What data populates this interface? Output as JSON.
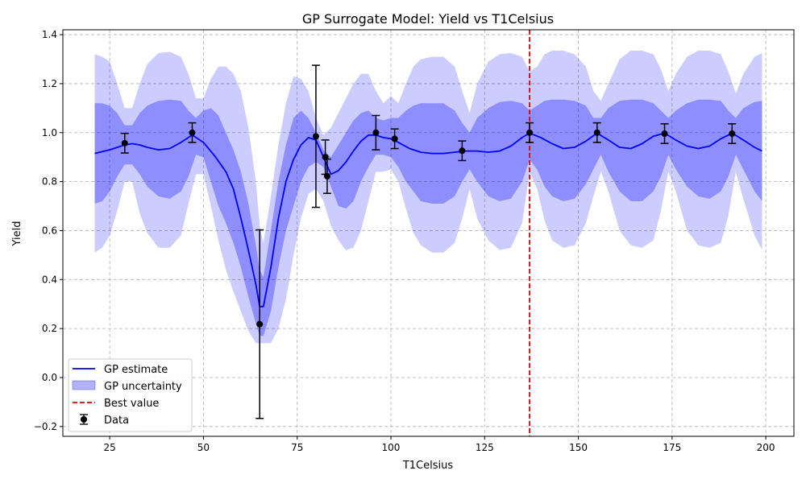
{
  "chart_data": {
    "type": "line",
    "title": "GP Surrogate Model: Yield vs T1Celsius",
    "xlabel": "T1Celsius",
    "ylabel": "Yield",
    "xlim": [
      12.5,
      207.5
    ],
    "ylim": [
      -0.24,
      1.42
    ],
    "xticks": [
      25,
      50,
      75,
      100,
      125,
      150,
      175,
      200
    ],
    "yticks": [
      -0.2,
      0.0,
      0.2,
      0.4,
      0.6,
      0.8,
      1.0,
      1.2,
      1.4
    ],
    "xtick_labels": [
      "25",
      "50",
      "75",
      "100",
      "125",
      "150",
      "175",
      "200"
    ],
    "ytick_labels": [
      "−0.2",
      "0.0",
      "0.2",
      "0.4",
      "0.6",
      "0.8",
      "1.0",
      "1.2",
      "1.4"
    ],
    "grid": true,
    "legend_position": "lower-left",
    "colors": {
      "estimate": "#0000ff",
      "band": "#0000ff",
      "best": "#dd0000",
      "data": "#000000"
    },
    "series": [
      {
        "name": "GP estimate",
        "kind": "line",
        "x": [
          21,
          25,
          29,
          31,
          33,
          35,
          38,
          41,
          44,
          47,
          50,
          53,
          56,
          58,
          60,
          62,
          64,
          65,
          66,
          68,
          70,
          72,
          74,
          76,
          78,
          80,
          82,
          84,
          86,
          88,
          90,
          92,
          94,
          96,
          98,
          100,
          102,
          105,
          108,
          111,
          114,
          117,
          120,
          123,
          126,
          129,
          132,
          135,
          137,
          140,
          143,
          146,
          149,
          152,
          155,
          158,
          161,
          164,
          167,
          170,
          173,
          176,
          179,
          182,
          185,
          188,
          191,
          194,
          197,
          199
        ],
        "y": [
          0.915,
          0.93,
          0.95,
          0.955,
          0.95,
          0.94,
          0.93,
          0.935,
          0.96,
          0.99,
          0.96,
          0.905,
          0.84,
          0.77,
          0.65,
          0.52,
          0.38,
          0.29,
          0.29,
          0.45,
          0.65,
          0.8,
          0.89,
          0.95,
          0.98,
          0.97,
          0.9,
          0.83,
          0.845,
          0.88,
          0.925,
          0.965,
          0.99,
          0.99,
          0.98,
          0.975,
          0.96,
          0.935,
          0.92,
          0.915,
          0.915,
          0.92,
          0.925,
          0.925,
          0.92,
          0.925,
          0.945,
          0.98,
          0.998,
          0.98,
          0.955,
          0.935,
          0.94,
          0.965,
          0.998,
          0.97,
          0.94,
          0.935,
          0.955,
          0.985,
          0.998,
          0.97,
          0.945,
          0.935,
          0.945,
          0.975,
          0.998,
          0.97,
          0.94,
          0.925
        ]
      },
      {
        "name": "GP uncertainty",
        "kind": "band",
        "x": [
          21,
          23,
          25,
          27,
          29,
          31,
          33,
          35,
          38,
          41,
          44,
          46,
          48,
          50,
          52,
          54,
          56,
          58,
          60,
          62,
          64,
          65,
          66,
          68,
          70,
          72,
          74,
          76,
          78,
          80,
          82,
          84,
          86,
          88,
          90,
          92,
          94,
          96,
          98,
          100,
          102,
          104,
          106,
          108,
          111,
          114,
          117,
          119,
          121,
          123,
          126,
          129,
          132,
          135,
          137,
          139,
          141,
          143,
          146,
          149,
          152,
          154,
          156,
          158,
          161,
          164,
          167,
          170,
          172,
          174,
          176,
          179,
          182,
          185,
          188,
          190,
          192,
          194,
          197,
          199
        ],
        "inner_lower": [
          0.71,
          0.72,
          0.76,
          0.82,
          0.87,
          0.87,
          0.83,
          0.78,
          0.74,
          0.73,
          0.76,
          0.82,
          0.91,
          0.9,
          0.8,
          0.7,
          0.63,
          0.55,
          0.45,
          0.33,
          0.22,
          0.17,
          0.17,
          0.27,
          0.45,
          0.6,
          0.7,
          0.8,
          0.86,
          0.88,
          0.86,
          0.78,
          0.7,
          0.69,
          0.72,
          0.8,
          0.86,
          0.91,
          0.91,
          0.9,
          0.86,
          0.8,
          0.76,
          0.72,
          0.71,
          0.71,
          0.74,
          0.8,
          0.85,
          0.8,
          0.74,
          0.72,
          0.73,
          0.8,
          0.89,
          0.85,
          0.78,
          0.74,
          0.72,
          0.73,
          0.79,
          0.85,
          0.91,
          0.84,
          0.76,
          0.72,
          0.72,
          0.76,
          0.82,
          0.91,
          0.85,
          0.78,
          0.74,
          0.73,
          0.76,
          0.82,
          0.91,
          0.85,
          0.76,
          0.72
        ],
        "inner_upper": [
          1.12,
          1.12,
          1.11,
          1.08,
          1.03,
          1.03,
          1.08,
          1.11,
          1.13,
          1.135,
          1.13,
          1.09,
          1.06,
          1.09,
          1.1,
          1.07,
          1.0,
          0.93,
          0.84,
          0.71,
          0.54,
          0.44,
          0.41,
          0.6,
          0.8,
          0.95,
          1.06,
          1.09,
          1.06,
          1.0,
          0.93,
          0.9,
          0.95,
          1.0,
          1.05,
          1.08,
          1.09,
          1.06,
          1.05,
          1.06,
          1.06,
          1.09,
          1.11,
          1.12,
          1.12,
          1.12,
          1.09,
          1.04,
          1.0,
          1.06,
          1.1,
          1.125,
          1.13,
          1.12,
          1.09,
          1.11,
          1.13,
          1.135,
          1.135,
          1.13,
          1.11,
          1.06,
          1.06,
          1.1,
          1.13,
          1.135,
          1.135,
          1.12,
          1.09,
          1.06,
          1.09,
          1.12,
          1.135,
          1.135,
          1.13,
          1.09,
          1.06,
          1.1,
          1.125,
          1.13
        ],
        "outer_lower": [
          0.51,
          0.53,
          0.58,
          0.68,
          0.8,
          0.8,
          0.67,
          0.59,
          0.53,
          0.53,
          0.58,
          0.71,
          0.83,
          0.83,
          0.7,
          0.56,
          0.44,
          0.35,
          0.27,
          0.19,
          0.14,
          0.14,
          0.14,
          0.14,
          0.2,
          0.32,
          0.5,
          0.65,
          0.75,
          0.77,
          0.72,
          0.62,
          0.56,
          0.52,
          0.53,
          0.6,
          0.72,
          0.84,
          0.84,
          0.85,
          0.8,
          0.69,
          0.59,
          0.54,
          0.51,
          0.51,
          0.55,
          0.65,
          0.77,
          0.65,
          0.56,
          0.52,
          0.53,
          0.63,
          0.84,
          0.77,
          0.64,
          0.56,
          0.53,
          0.54,
          0.63,
          0.74,
          0.84,
          0.76,
          0.6,
          0.54,
          0.53,
          0.56,
          0.68,
          0.84,
          0.76,
          0.6,
          0.54,
          0.53,
          0.55,
          0.66,
          0.84,
          0.73,
          0.58,
          0.52
        ],
        "outer_upper": [
          1.32,
          1.31,
          1.29,
          1.2,
          1.1,
          1.1,
          1.2,
          1.28,
          1.325,
          1.33,
          1.31,
          1.24,
          1.14,
          1.14,
          1.22,
          1.27,
          1.27,
          1.24,
          1.17,
          1.02,
          0.8,
          0.62,
          0.55,
          0.74,
          0.95,
          1.12,
          1.23,
          1.22,
          1.17,
          1.06,
          0.99,
          1.02,
          1.08,
          1.14,
          1.2,
          1.24,
          1.24,
          1.17,
          1.12,
          1.15,
          1.12,
          1.2,
          1.27,
          1.3,
          1.31,
          1.31,
          1.27,
          1.17,
          1.08,
          1.2,
          1.29,
          1.32,
          1.325,
          1.31,
          1.25,
          1.27,
          1.32,
          1.335,
          1.335,
          1.32,
          1.27,
          1.17,
          1.13,
          1.2,
          1.3,
          1.335,
          1.335,
          1.32,
          1.26,
          1.17,
          1.24,
          1.31,
          1.335,
          1.335,
          1.32,
          1.25,
          1.16,
          1.24,
          1.31,
          1.325
        ]
      },
      {
        "name": "Best value",
        "kind": "vline",
        "x": 137
      },
      {
        "name": "Data",
        "kind": "errorbar",
        "x": [
          29,
          47,
          65,
          80,
          82.5,
          83,
          96,
          101,
          119,
          137,
          155,
          173,
          191
        ],
        "y": [
          0.957,
          1.0,
          0.218,
          0.985,
          0.9,
          0.822,
          1.0,
          0.975,
          0.926,
          1.0,
          1.0,
          0.996,
          0.996
        ],
        "yerr": [
          0.04,
          0.04,
          0.385,
          0.29,
          0.07,
          0.07,
          0.07,
          0.04,
          0.04,
          0.04,
          0.04,
          0.04,
          0.04
        ]
      }
    ]
  }
}
